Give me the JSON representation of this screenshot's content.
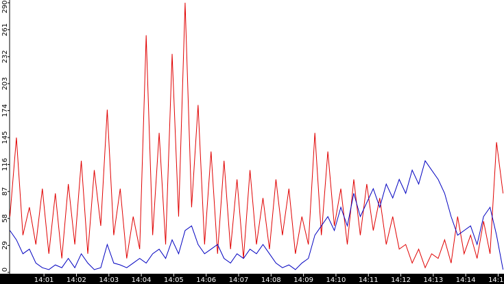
{
  "chart_data": {
    "type": "line",
    "x": [
      839.95,
      840.15,
      840.35,
      840.55,
      840.75,
      840.95,
      841.15,
      841.35,
      841.55,
      841.75,
      841.95,
      842.15,
      842.35,
      842.55,
      842.75,
      842.95,
      843.15,
      843.35,
      843.55,
      843.75,
      843.95,
      844.15,
      844.35,
      844.55,
      844.75,
      844.95,
      845.15,
      845.35,
      845.55,
      845.75,
      845.95,
      846.15,
      846.35,
      846.55,
      846.75,
      846.95,
      847.15,
      847.35,
      847.55,
      847.75,
      847.95,
      848.15,
      848.35,
      848.55,
      848.75,
      848.95,
      849.15,
      849.35,
      849.55,
      849.75,
      849.95,
      850.15,
      850.35,
      850.55,
      850.75,
      850.95,
      851.15,
      851.35,
      851.55,
      851.75,
      851.95,
      852.15,
      852.35,
      852.55,
      852.75,
      852.95,
      853.15,
      853.35,
      853.55,
      853.75,
      853.95,
      854.15,
      854.35,
      854.55,
      854.75,
      854.95,
      855.15
    ],
    "series": [
      {
        "color": "#e00000",
        "values": [
          60,
          145,
          40,
          70,
          30,
          90,
          20,
          85,
          15,
          95,
          30,
          120,
          20,
          110,
          50,
          175,
          40,
          90,
          15,
          60,
          25,
          255,
          40,
          150,
          30,
          235,
          60,
          290,
          70,
          180,
          30,
          130,
          20,
          120,
          25,
          100,
          15,
          110,
          30,
          80,
          25,
          100,
          40,
          90,
          20,
          60,
          30,
          150,
          40,
          130,
          50,
          90,
          30,
          100,
          40,
          95,
          45,
          80,
          30,
          60,
          25,
          30,
          10,
          25,
          5,
          20,
          15,
          35,
          10,
          60,
          20,
          40,
          15,
          55,
          20,
          140,
          85
        ]
      },
      {
        "color": "#0000c0",
        "values": [
          45,
          35,
          20,
          25,
          10,
          5,
          3,
          8,
          5,
          15,
          5,
          20,
          10,
          3,
          5,
          30,
          10,
          8,
          5,
          10,
          15,
          10,
          20,
          25,
          15,
          35,
          20,
          45,
          50,
          30,
          20,
          25,
          30,
          15,
          10,
          20,
          15,
          25,
          20,
          30,
          20,
          10,
          5,
          8,
          3,
          10,
          15,
          40,
          50,
          60,
          45,
          70,
          50,
          85,
          60,
          75,
          90,
          70,
          95,
          80,
          100,
          85,
          110,
          95,
          120,
          110,
          100,
          85,
          60,
          40,
          45,
          50,
          30,
          60,
          70,
          40,
          3
        ]
      }
    ],
    "xlim": [
      839.94,
      855.18
    ],
    "xticks": [
      {
        "value": 841,
        "label": "14:01"
      },
      {
        "value": 842,
        "label": "14:02"
      },
      {
        "value": 843,
        "label": "14:03"
      },
      {
        "value": 844,
        "label": "14:04"
      },
      {
        "value": 845,
        "label": "14:05"
      },
      {
        "value": 846,
        "label": "14:06"
      },
      {
        "value": 847,
        "label": "14:07"
      },
      {
        "value": 848,
        "label": "14:08"
      },
      {
        "value": 849,
        "label": "14:09"
      },
      {
        "value": 850,
        "label": "14:10"
      },
      {
        "value": 851,
        "label": "14:11"
      },
      {
        "value": 852,
        "label": "14:12"
      },
      {
        "value": 853,
        "label": "14:13"
      },
      {
        "value": 854,
        "label": "14:14"
      },
      {
        "value": 855,
        "label": "14:15"
      }
    ],
    "ylim": [
      0,
      290
    ],
    "yticks": [
      0,
      29,
      58,
      87,
      116,
      145,
      174,
      203,
      232,
      261,
      290
    ]
  }
}
